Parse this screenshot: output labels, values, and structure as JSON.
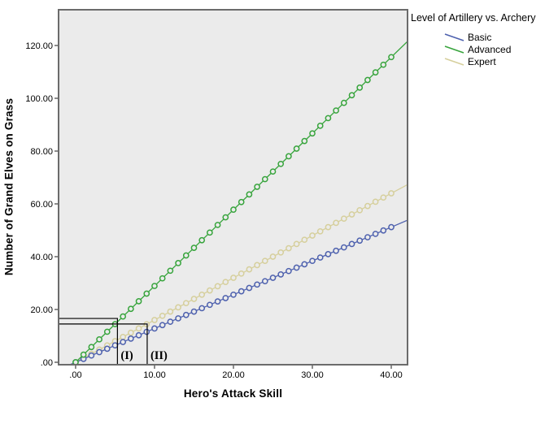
{
  "figure": {
    "x_axis_title": "Hero's Attack Skill",
    "y_axis_title": "Number of Grand Elves on Grass"
  },
  "legend": {
    "title": "Level of Artillery vs. Archery",
    "items": [
      {
        "label": "Basic",
        "color": "#4e61ae"
      },
      {
        "label": "Advanced",
        "color": "#37a43c"
      },
      {
        "label": "Expert",
        "color": "#d6cf9c"
      }
    ]
  },
  "chart_data": {
    "type": "line",
    "title": "",
    "xlabel": "Hero's Attack Skill",
    "ylabel": "Number of Grand Elves on Grass",
    "legend_title": "Level of Artillery vs. Archery",
    "legend_position": "top-right-outside",
    "grid": false,
    "plot_bg": "#ebebeb",
    "border_color": "#6b6b6b",
    "xlim": [
      -2.16,
      42.06
    ],
    "ylim": [
      -0.92,
      133.54
    ],
    "x_ticks": [
      0,
      10,
      20,
      30,
      40
    ],
    "x_tick_labels": [
      ".00",
      "10.00",
      "20.00",
      "30.00",
      "40.00"
    ],
    "y_ticks": [
      0,
      20,
      40,
      60,
      80,
      100,
      120
    ],
    "y_tick_labels": [
      ".00",
      "20.00",
      "40.00",
      "60.00",
      "80.00",
      "100.00",
      "120.00"
    ],
    "marker_x_start": 0,
    "marker_x_end": 40,
    "marker_step": 1,
    "series": [
      {
        "name": "Basic",
        "color": "#4e61ae",
        "slope": 1.28,
        "y_at_x40": 51.2
      },
      {
        "name": "Advanced",
        "color": "#37a43c",
        "slope": 2.89,
        "y_at_x40": 115.6
      },
      {
        "name": "Expert",
        "color": "#d6cf9c",
        "slope": 1.6,
        "y_at_x40": 64.0
      }
    ],
    "draw_order": [
      2,
      0,
      1
    ],
    "annotations": {
      "boxes": [
        {
          "label": "(I)",
          "x_right": 5.3,
          "y_top": 16.6
        },
        {
          "label": "(II)",
          "x_right": 9.07,
          "y_top": 14.5
        }
      ],
      "box_color": "#000000"
    }
  }
}
